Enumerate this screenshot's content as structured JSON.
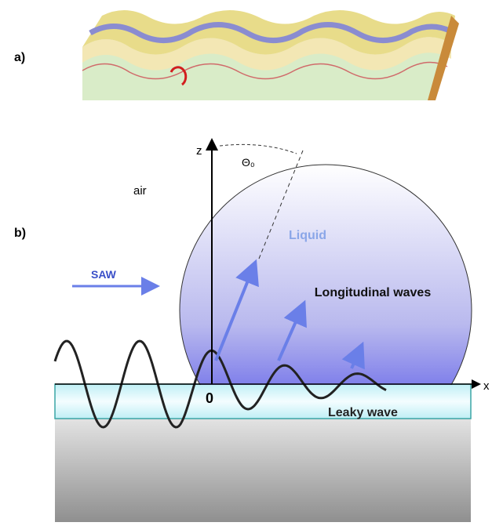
{
  "panel_a": {
    "label": "a)"
  },
  "panel_b": {
    "label": "b)",
    "z_axis": "z",
    "x_axis": "x",
    "angle": "Θ₀",
    "medium": "air",
    "liquid": "Liquid",
    "saw": "SAW",
    "longitudinal": "Longitudinal waves",
    "origin": "0",
    "leaky": "Leaky wave"
  }
}
